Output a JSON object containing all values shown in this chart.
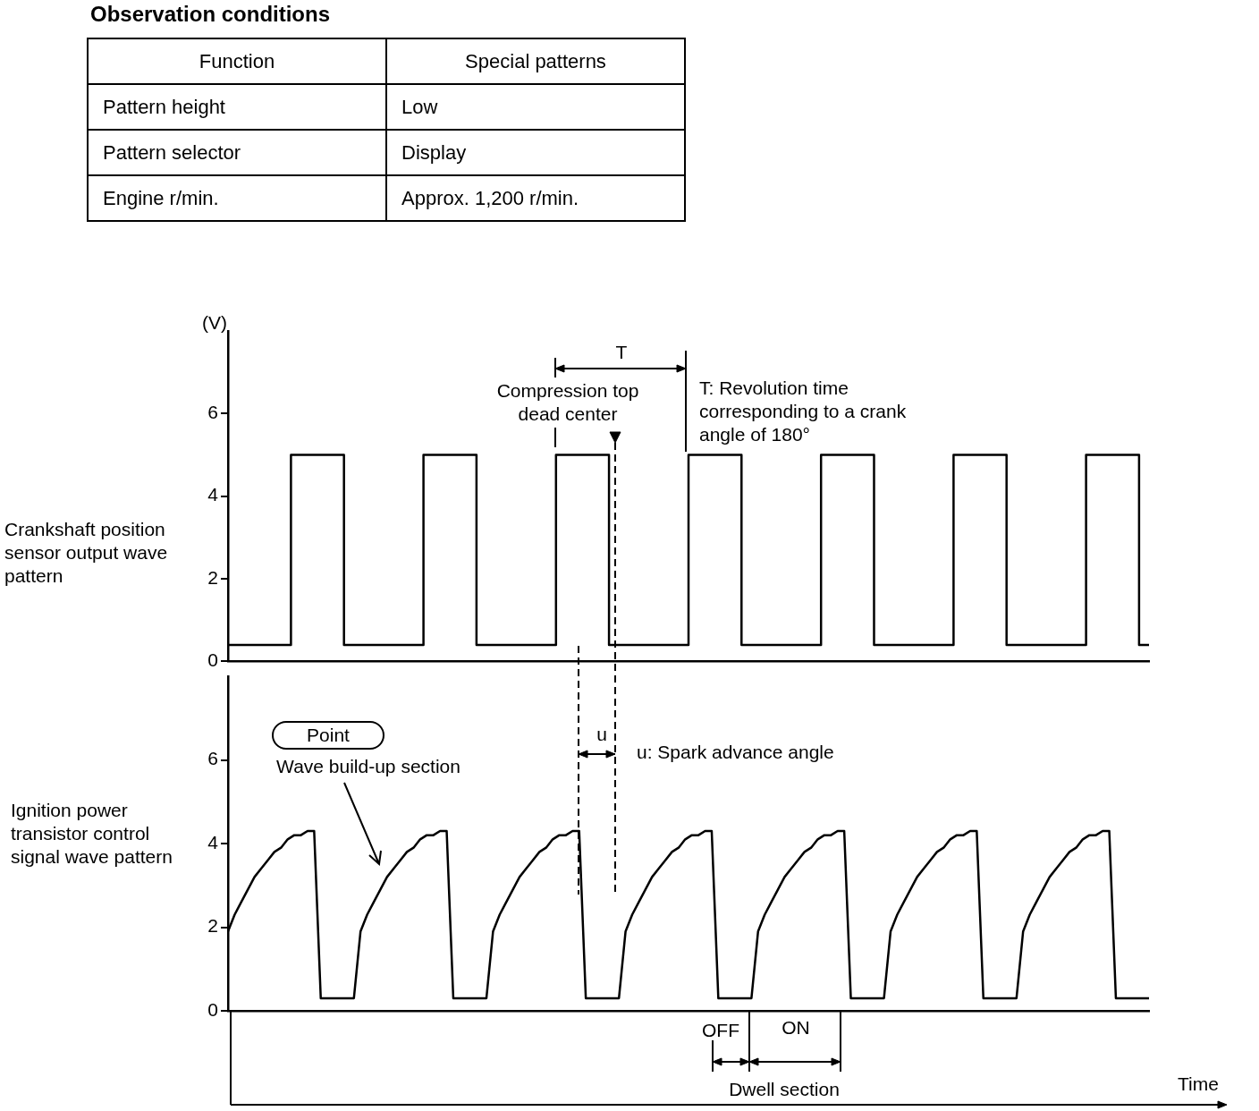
{
  "chart_data": [
    {
      "type": "other",
      "title": "Observation conditions",
      "annotations": [
        "Function",
        "Special patterns",
        "Pattern height",
        "Low",
        "Pattern selector",
        "Display",
        "Engine r/min.",
        "Approx. 1,200 r/min."
      ]
    },
    {
      "type": "step",
      "ylabel": "Crankshaft position sensor output wave pattern",
      "tick_labels": "y",
      "marker": "none",
      "ylim": [
        0,
        8
      ],
      "yticks": [
        0,
        2,
        4,
        6
      ],
      "categories": [
        null,
        null,
        null,
        null,
        null,
        null,
        null,
        null,
        null,
        null,
        null,
        null,
        null,
        null,
        null,
        null,
        null,
        null,
        null,
        null,
        null,
        null,
        null,
        null,
        null,
        null,
        null,
        null,
        null,
        null,
        null,
        null,
        null,
        null,
        null,
        null,
        null,
        null,
        null,
        null,
        null,
        null,
        null,
        null,
        null,
        null,
        null,
        null,
        null,
        null,
        null,
        null,
        null,
        null,
        null,
        null,
        null,
        null,
        null,
        null,
        null,
        null,
        null,
        null,
        null,
        null,
        null,
        null,
        null,
        null,
        null,
        null,
        null,
        null,
        null,
        null,
        null,
        null,
        null,
        null,
        null,
        null,
        null,
        null,
        null,
        null,
        null,
        null,
        null,
        null,
        null,
        null,
        null,
        null,
        null,
        null,
        null,
        null,
        null,
        null,
        null,
        null,
        null,
        null,
        null,
        null,
        null,
        null,
        null,
        null,
        null,
        null,
        null,
        null,
        null,
        null,
        null,
        null,
        null,
        null,
        null,
        null,
        null,
        null,
        null,
        null,
        null,
        null,
        null,
        null,
        null,
        null,
        null,
        null,
        null,
        null,
        null,
        null,
        null,
        null
      ],
      "series": [
        {
          "color": "#000000",
          "values": [
            0.4,
            0.4,
            0.4,
            0.4,
            0.4,
            0.4,
            0.4,
            0.4,
            0.4,
            0.4,
            5,
            5,
            5,
            5,
            5,
            5,
            5,
            5,
            0.4,
            0.4,
            0.4,
            0.4,
            0.4,
            0.4,
            0.4,
            0.4,
            0.4,
            0.4,
            0.4,
            0.4,
            5,
            5,
            5,
            5,
            5,
            5,
            5,
            5,
            0.4,
            0.4,
            0.4,
            0.4,
            0.4,
            0.4,
            0.4,
            0.4,
            0.4,
            0.4,
            0.4,
            0.4,
            5,
            5,
            5,
            5,
            5,
            5,
            5,
            5,
            0.4,
            0.4,
            0.4,
            0.4,
            0.4,
            0.4,
            0.4,
            0.4,
            0.4,
            0.4,
            0.4,
            0.4,
            5,
            5,
            5,
            5,
            5,
            5,
            5,
            5,
            0.4,
            0.4,
            0.4,
            0.4,
            0.4,
            0.4,
            0.4,
            0.4,
            0.4,
            0.4,
            0.4,
            0.4,
            5,
            5,
            5,
            5,
            5,
            5,
            5,
            5,
            0.4,
            0.4,
            0.4,
            0.4,
            0.4,
            0.4,
            0.4,
            0.4,
            0.4,
            0.4,
            0.4,
            0.4,
            5,
            5,
            5,
            5,
            5,
            5,
            5,
            5,
            0.4,
            0.4,
            0.4,
            0.4,
            0.4,
            0.4,
            0.4,
            0.4,
            0.4,
            0.4,
            0.4,
            0.4,
            5,
            5,
            5,
            5,
            5,
            5,
            5,
            5,
            0.4,
            0.4
          ]
        }
      ],
      "annotations": [
        "(V)",
        "T",
        "Compression top dead center",
        "T: Revolution time corresponding to a crank angle of 180°"
      ]
    },
    {
      "type": "line",
      "ylabel": "Ignition power transistor control signal wave pattern",
      "xlabel": "Time",
      "tick_labels": "y",
      "marker": "none",
      "ylim": [
        0,
        8
      ],
      "yticks": [
        0,
        2,
        4,
        6
      ],
      "categories": [
        null,
        null,
        null,
        null,
        null,
        null,
        null,
        null,
        null,
        null,
        null,
        null,
        null,
        null,
        null,
        null,
        null,
        null,
        null,
        null,
        null,
        null,
        null,
        null,
        null,
        null,
        null,
        null,
        null,
        null,
        null,
        null,
        null,
        null,
        null,
        null,
        null,
        null,
        null,
        null,
        null,
        null,
        null,
        null,
        null,
        null,
        null,
        null,
        null,
        null,
        null,
        null,
        null,
        null,
        null,
        null,
        null,
        null,
        null,
        null,
        null,
        null,
        null,
        null,
        null,
        null,
        null,
        null,
        null,
        null,
        null,
        null,
        null,
        null,
        null,
        null,
        null,
        null,
        null,
        null,
        null,
        null,
        null,
        null,
        null,
        null,
        null,
        null,
        null,
        null,
        null,
        null,
        null,
        null,
        null,
        null,
        null,
        null,
        null,
        null,
        null,
        null,
        null,
        null,
        null,
        null,
        null,
        null,
        null,
        null,
        null,
        null,
        null,
        null,
        null,
        null,
        null,
        null,
        null,
        null,
        null,
        null,
        null,
        null,
        null,
        null,
        null,
        null,
        null,
        null,
        null,
        null,
        null,
        null,
        null,
        null,
        null,
        null,
        null,
        null
      ],
      "series": [
        {
          "color": "#000000",
          "values": [
            1.9,
            2.3,
            2.6,
            2.9,
            3.2,
            3.4,
            3.6,
            3.8,
            3.9,
            4.1,
            4.2,
            4.2,
            4.3,
            4.3,
            0.3,
            0.3,
            0.3,
            0.3,
            0.3,
            0.3,
            1.9,
            2.3,
            2.6,
            2.9,
            3.2,
            3.4,
            3.6,
            3.8,
            3.9,
            4.1,
            4.2,
            4.2,
            4.3,
            4.3,
            0.3,
            0.3,
            0.3,
            0.3,
            0.3,
            0.3,
            1.9,
            2.3,
            2.6,
            2.9,
            3.2,
            3.4,
            3.6,
            3.8,
            3.9,
            4.1,
            4.2,
            4.2,
            4.3,
            4.3,
            0.3,
            0.3,
            0.3,
            0.3,
            0.3,
            0.3,
            1.9,
            2.3,
            2.6,
            2.9,
            3.2,
            3.4,
            3.6,
            3.8,
            3.9,
            4.1,
            4.2,
            4.2,
            4.3,
            4.3,
            0.3,
            0.3,
            0.3,
            0.3,
            0.3,
            0.3,
            1.9,
            2.3,
            2.6,
            2.9,
            3.2,
            3.4,
            3.6,
            3.8,
            3.9,
            4.1,
            4.2,
            4.2,
            4.3,
            4.3,
            0.3,
            0.3,
            0.3,
            0.3,
            0.3,
            0.3,
            1.9,
            2.3,
            2.6,
            2.9,
            3.2,
            3.4,
            3.6,
            3.8,
            3.9,
            4.1,
            4.2,
            4.2,
            4.3,
            4.3,
            0.3,
            0.3,
            0.3,
            0.3,
            0.3,
            0.3,
            1.9,
            2.3,
            2.6,
            2.9,
            3.2,
            3.4,
            3.6,
            3.8,
            3.9,
            4.1,
            4.2,
            4.2,
            4.3,
            4.3,
            0.3,
            0.3,
            0.3,
            0.3,
            0.3,
            0.3
          ]
        }
      ],
      "annotations": [
        "u",
        "u: Spark advance angle",
        "Point",
        "Wave build-up section",
        "OFF",
        "ON",
        "Dwell section"
      ]
    }
  ]
}
